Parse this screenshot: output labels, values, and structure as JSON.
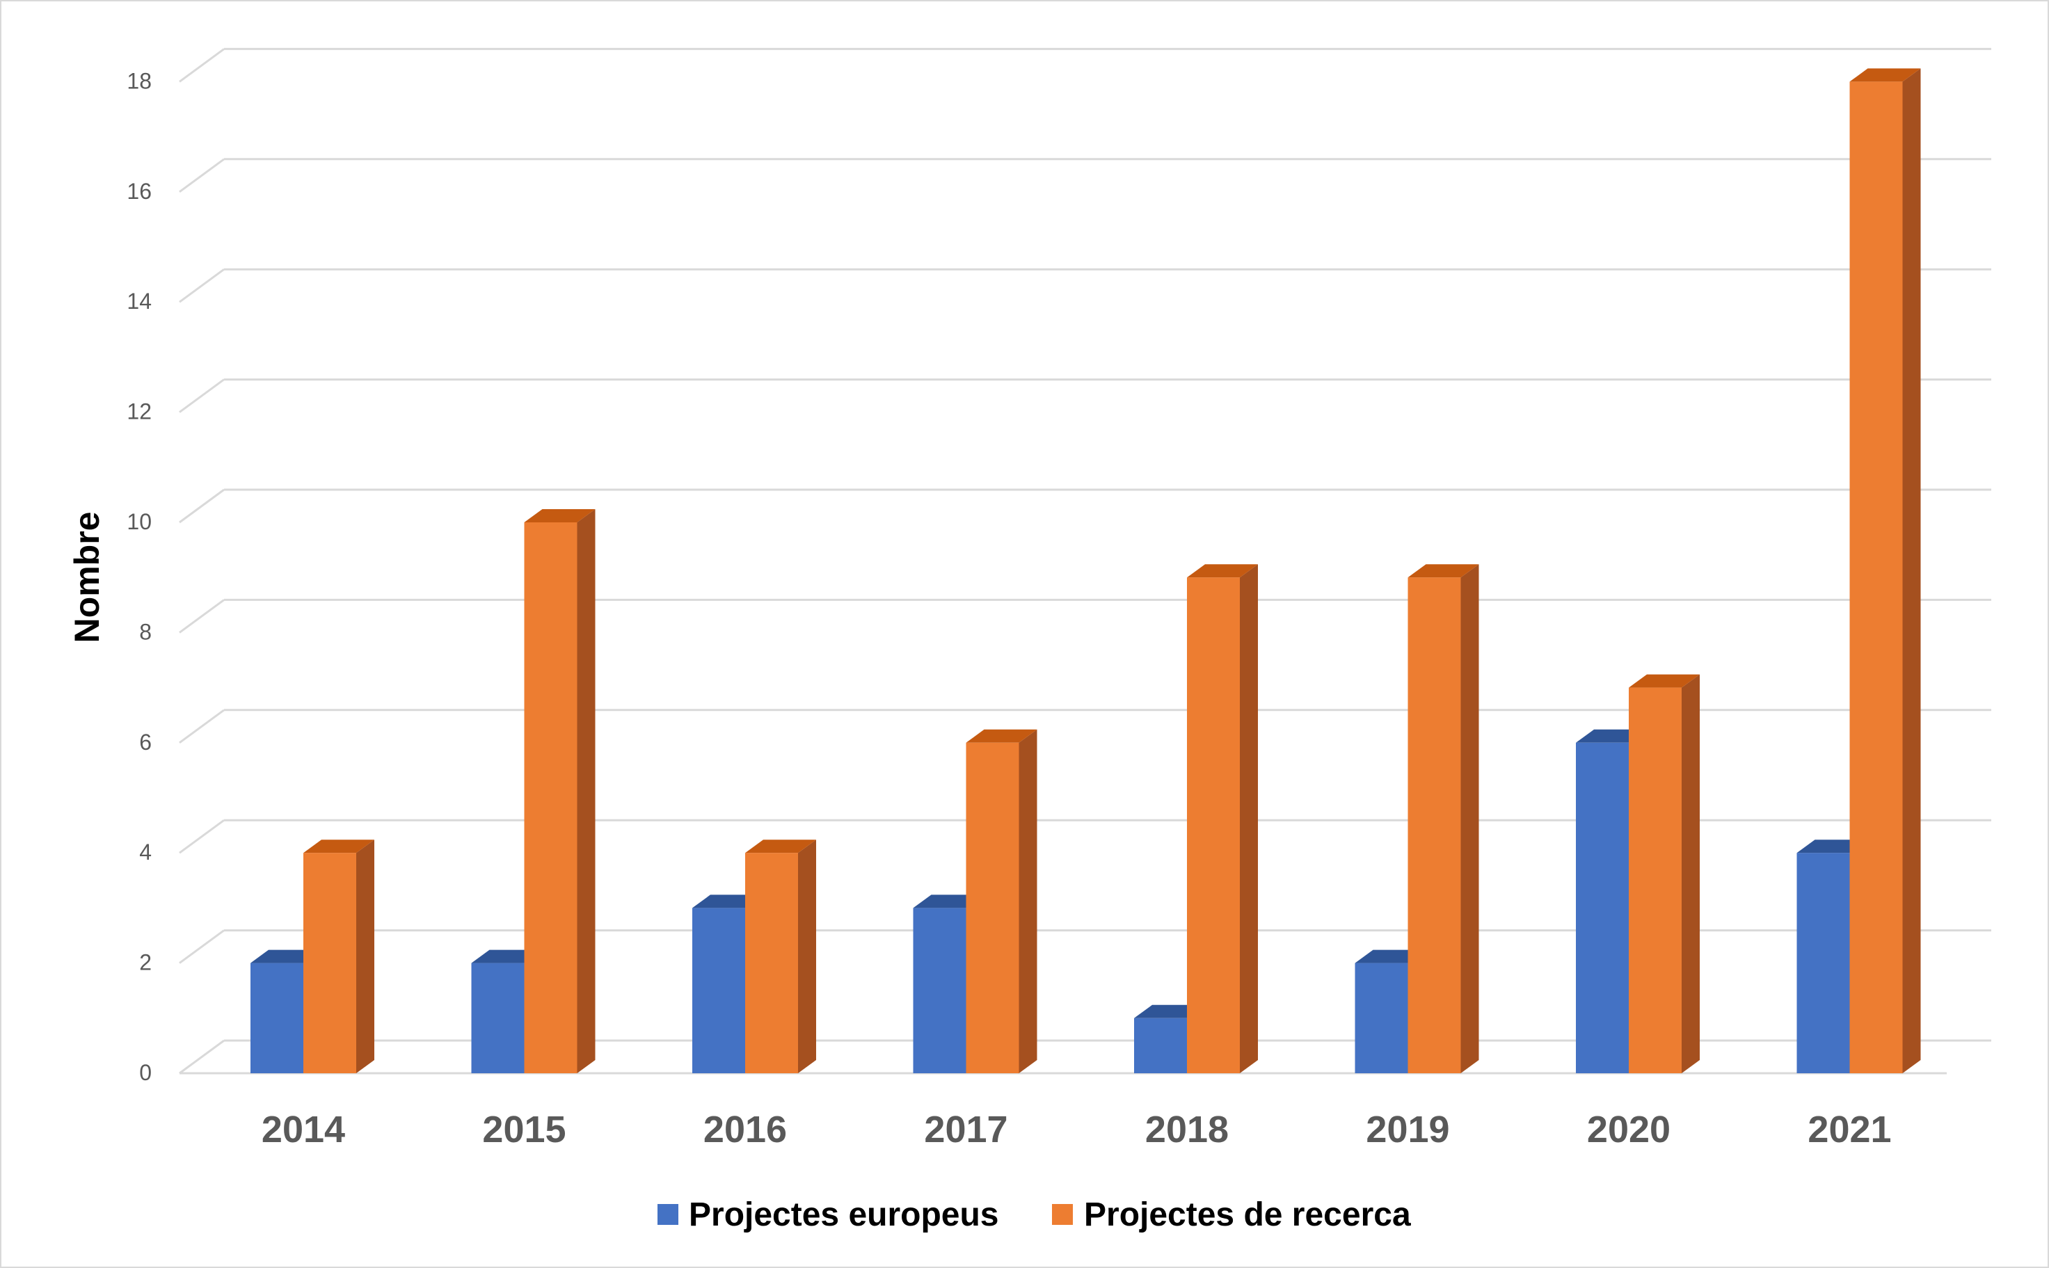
{
  "chart_data": {
    "type": "bar",
    "categories": [
      "2014",
      "2015",
      "2016",
      "2017",
      "2018",
      "2019",
      "2020",
      "2021"
    ],
    "series": [
      {
        "name": "Projectes europeus",
        "values": [
          2,
          2,
          3,
          3,
          1,
          2,
          6,
          4
        ],
        "color": "#4472c4",
        "top_color": "#2f5597"
      },
      {
        "name": "Projectes de recerca",
        "values": [
          4,
          10,
          4,
          6,
          9,
          9,
          7,
          18
        ],
        "color": "#ed7d31",
        "top_color": "#c55a11",
        "side_color": "#a5501f"
      }
    ],
    "title": "",
    "xlabel": "",
    "ylabel": "Nombre",
    "ylim": [
      0,
      18
    ],
    "yticks": [
      0,
      2,
      4,
      6,
      8,
      10,
      12,
      14,
      16,
      18
    ],
    "grid": true,
    "legend": "bottom",
    "style": "3d-clustered-column"
  }
}
